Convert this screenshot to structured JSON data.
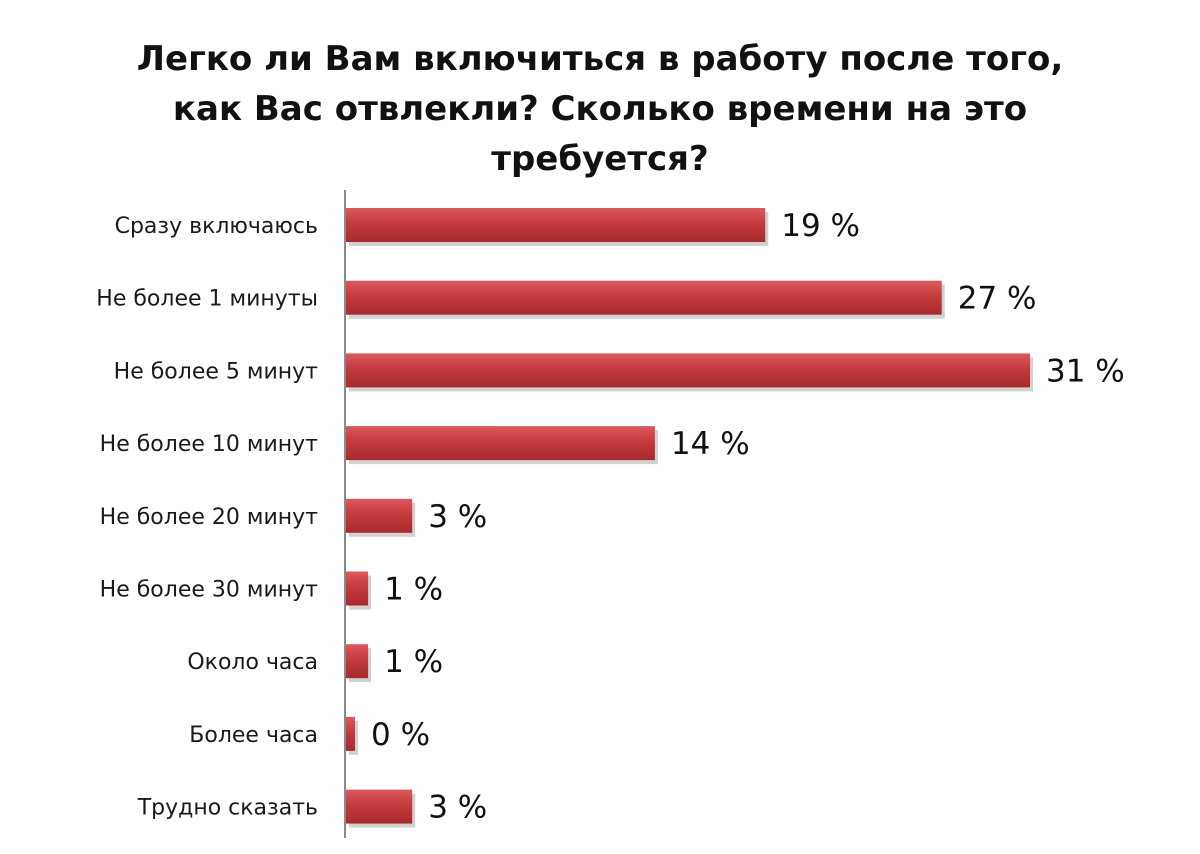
{
  "chart_data": {
    "type": "bar",
    "orientation": "horizontal",
    "title": "Легко ли Вам включиться в работу после того, как Вас отвлекли? Сколько времени на это требуется?",
    "xlabel": "",
    "ylabel": "",
    "unit": " %",
    "xlim": [
      0,
      31
    ],
    "grid": false,
    "legend": "none",
    "bar_color": "#c0373a",
    "bar_shadow_color": "#9a9a9a",
    "categories": [
      "Сразу включаюсь",
      "Не более 1 минуты",
      "Не более 5 минут",
      "Не более 10 минут",
      "Не более 20 минут",
      "Не более 30 минут",
      "Около часа",
      "Более часа",
      "Трудно сказать"
    ],
    "values": [
      19,
      27,
      31,
      14,
      3,
      1,
      1,
      0,
      3
    ],
    "data_labels": [
      "19 %",
      "27 %",
      "31 %",
      "14 %",
      "3 %",
      "1 %",
      "1 %",
      "0 %",
      "3 %"
    ]
  }
}
